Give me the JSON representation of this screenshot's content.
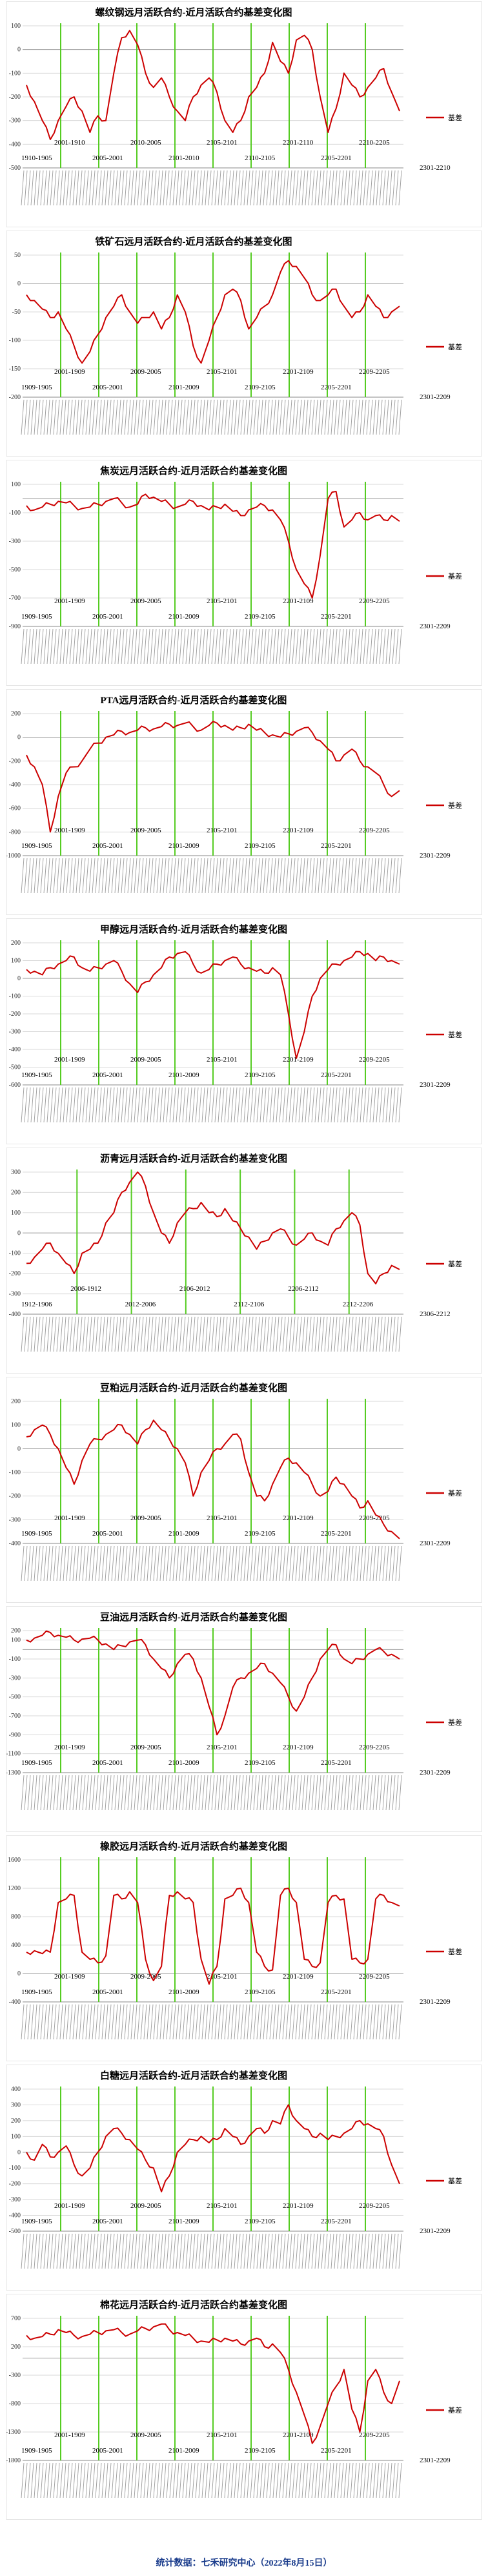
{
  "footer": "统计数据：七禾研究中心（2022年8月15日）",
  "colors": {
    "line": "#cc0000",
    "rollover": "#55cc22",
    "grid": "#d8d8d8"
  },
  "chart_data": [
    {
      "type": "line",
      "title": "螺纹钢远月活跃合约-近月活跃合约基差变化图",
      "ylim": [
        -500,
        100
      ],
      "yticks": [
        100,
        0,
        -100,
        -200,
        -300,
        -400,
        -500
      ],
      "legend": {
        "label": "基差",
        "placement": "right"
      },
      "right_label": "2301-2210",
      "rollover_labels": [
        "1910-1905",
        "2001-1910",
        "2005-2001",
        "2010-2005",
        "2101-2010",
        "2105-2101",
        "2110-2105",
        "2201-2110",
        "2205-2201",
        "2210-2205"
      ],
      "series": [
        {
          "name": "基差",
          "values": [
            -150,
            -220,
            -300,
            -380,
            -300,
            -240,
            -200,
            -260,
            -350,
            -280,
            -300,
            -100,
            50,
            80,
            20,
            -100,
            -160,
            -120,
            -200,
            -260,
            -300,
            -200,
            -150,
            -120,
            -180,
            -300,
            -350,
            -300,
            -200,
            -160,
            -100,
            30,
            -50,
            -100,
            40,
            60,
            0,
            -200,
            -350,
            -250,
            -100,
            -150,
            -200,
            -160,
            -120,
            -80,
            -180,
            -260
          ]
        }
      ]
    },
    {
      "type": "line",
      "title": "铁矿石远月活跃合约-近月活跃合约基差变化图",
      "ylim": [
        -200,
        50
      ],
      "yticks": [
        50,
        0,
        -50,
        -100,
        -150,
        -200
      ],
      "legend": {
        "label": "基差",
        "placement": "right"
      },
      "right_label": "2301-2209",
      "rollover_labels": [
        "1909-1905",
        "2001-1909",
        "2005-2001",
        "2009-2005",
        "2101-2009",
        "2105-2101",
        "2109-2105",
        "2201-2109",
        "2205-2201",
        "2209-2205"
      ],
      "series": [
        {
          "name": "基差",
          "values": [
            -20,
            -30,
            -45,
            -60,
            -50,
            -80,
            -110,
            -140,
            -120,
            -90,
            -60,
            -40,
            -20,
            -50,
            -70,
            -60,
            -50,
            -80,
            -60,
            -20,
            -50,
            -110,
            -140,
            -100,
            -60,
            -20,
            -10,
            -30,
            -80,
            -60,
            -40,
            -20,
            20,
            40,
            30,
            10,
            -20,
            -30,
            -20,
            -10,
            -40,
            -60,
            -50,
            -20,
            -40,
            -60,
            -50,
            -40
          ]
        }
      ]
    },
    {
      "type": "line",
      "title": "焦炭远月活跃合约-近月活跃合约基差变化图",
      "ylim": [
        -900,
        100
      ],
      "yticks": [
        100,
        -100,
        -300,
        -500,
        -700,
        -900
      ],
      "legend": {
        "label": "基差",
        "placement": "right"
      },
      "right_label": "2301-2209",
      "rollover_labels": [
        "1909-1905",
        "2001-1909",
        "2005-2001",
        "2009-2005",
        "2101-2009",
        "2105-2101",
        "2109-2105",
        "2201-2109",
        "2205-2201",
        "2209-2205"
      ],
      "series": [
        {
          "name": "基差",
          "values": [
            -50,
            -80,
            -60,
            -40,
            -20,
            -30,
            -50,
            -70,
            -60,
            -40,
            -20,
            0,
            -30,
            -60,
            -40,
            30,
            10,
            -20,
            -40,
            -60,
            -40,
            -20,
            -50,
            -80,
            -60,
            -40,
            -90,
            -120,
            -80,
            -60,
            -50,
            -80,
            -150,
            -300,
            -500,
            -600,
            -700,
            -400,
            0,
            50,
            -200,
            -150,
            -100,
            -150,
            -120,
            -150,
            -120,
            -160
          ]
        }
      ]
    },
    {
      "type": "line",
      "title": "PTA远月活跃合约-近月活跃合约基差变化图",
      "ylim": [
        -1000,
        200
      ],
      "yticks": [
        200,
        0,
        -200,
        -400,
        -600,
        -800,
        -1000
      ],
      "legend": {
        "label": "基差",
        "placement": "right"
      },
      "right_label": "2301-2209",
      "rollover_labels": [
        "1909-1905",
        "2001-1909",
        "2005-2001",
        "2009-2005",
        "2101-2009",
        "2105-2101",
        "2109-2105",
        "2201-2109",
        "2205-2201",
        "2209-2205"
      ],
      "series": [
        {
          "name": "基差",
          "values": [
            -150,
            -250,
            -400,
            -800,
            -500,
            -300,
            -250,
            -200,
            -100,
            -50,
            0,
            20,
            50,
            40,
            60,
            80,
            70,
            90,
            110,
            100,
            120,
            90,
            60,
            100,
            120,
            100,
            60,
            80,
            110,
            60,
            40,
            20,
            0,
            30,
            50,
            80,
            40,
            -30,
            -100,
            -200,
            -150,
            -100,
            -200,
            -250,
            -300,
            -400,
            -500,
            -450
          ]
        }
      ]
    },
    {
      "type": "line",
      "title": "甲醇远月活跃合约-近月活跃合约基差变化图",
      "ylim": [
        -600,
        200
      ],
      "yticks": [
        200,
        100,
        0,
        -100,
        -200,
        -300,
        -400,
        -500,
        -600
      ],
      "legend": {
        "label": "基差",
        "placement": "right"
      },
      "right_label": "2301-2209",
      "rollover_labels": [
        "1909-1905",
        "2001-1909",
        "2005-2001",
        "2009-2005",
        "2101-2009",
        "2105-2101",
        "2109-2105",
        "2201-2109",
        "2205-2201",
        "2209-2205"
      ],
      "series": [
        {
          "name": "基差",
          "values": [
            50,
            40,
            20,
            60,
            80,
            100,
            120,
            60,
            40,
            60,
            80,
            100,
            40,
            -30,
            -80,
            -20,
            20,
            60,
            120,
            140,
            150,
            80,
            30,
            50,
            80,
            100,
            120,
            80,
            60,
            40,
            30,
            60,
            20,
            -200,
            -450,
            -300,
            -100,
            0,
            50,
            80,
            100,
            120,
            150,
            140,
            100,
            120,
            100,
            80
          ]
        }
      ]
    },
    {
      "type": "line",
      "title": "沥青远月活跃合约-近月活跃合约基差变化图",
      "ylim": [
        -400,
        300
      ],
      "yticks": [
        300,
        200,
        100,
        0,
        -100,
        -200,
        -300,
        -400
      ],
      "legend": {
        "label": "基差",
        "placement": "right"
      },
      "right_label": "2306-2212",
      "rollover_labels": [
        "1912-1906",
        "2006-1912",
        "2012-2006",
        "2106-2012",
        "2112-2106",
        "2206-2112",
        "2212-2206"
      ],
      "series": [
        {
          "name": "基差",
          "values": [
            -150,
            -120,
            -80,
            -50,
            -100,
            -150,
            -200,
            -100,
            -80,
            -50,
            50,
            100,
            200,
            250,
            300,
            230,
            100,
            0,
            -50,
            50,
            100,
            120,
            150,
            100,
            80,
            120,
            60,
            20,
            -20,
            -80,
            -40,
            0,
            20,
            -20,
            -60,
            -30,
            0,
            -40,
            -60,
            20,
            60,
            100,
            40,
            -200,
            -250,
            -200,
            -160,
            -180
          ]
        }
      ]
    },
    {
      "type": "line",
      "title": "豆粕远月活跃合约-近月活跃合约基差变化图",
      "ylim": [
        -400,
        200
      ],
      "yticks": [
        200,
        100,
        0,
        -100,
        -200,
        -300,
        -400
      ],
      "legend": {
        "label": "基差",
        "placement": "right"
      },
      "right_label": "2301-2209",
      "rollover_labels": [
        "1909-1905",
        "2001-1909",
        "2005-2001",
        "2009-2005",
        "2101-2009",
        "2105-2101",
        "2109-2105",
        "2201-2109",
        "2205-2201",
        "2209-2205"
      ],
      "series": [
        {
          "name": "基差",
          "values": [
            50,
            80,
            100,
            60,
            0,
            -80,
            -150,
            -50,
            20,
            40,
            60,
            80,
            100,
            60,
            20,
            80,
            120,
            80,
            40,
            0,
            -60,
            -200,
            -100,
            -50,
            0,
            20,
            60,
            40,
            -100,
            -200,
            -220,
            -150,
            -80,
            -40,
            -60,
            -100,
            -150,
            -200,
            -180,
            -120,
            -150,
            -200,
            -250,
            -220,
            -280,
            -320,
            -350,
            -380
          ]
        }
      ]
    },
    {
      "type": "line",
      "title": "豆油远月活跃合约-近月活跃合约基差变化图",
      "ylim": [
        -1300,
        200
      ],
      "yticks": [
        200,
        100,
        -100,
        -300,
        -500,
        -700,
        -900,
        -1100,
        -1300
      ],
      "legend": {
        "label": "基差",
        "placement": "right"
      },
      "right_label": "2301-2209",
      "rollover_labels": [
        "1909-1905",
        "2001-1909",
        "2005-2001",
        "2009-2005",
        "2101-2009",
        "2105-2101",
        "2109-2105",
        "2201-2109",
        "2205-2201",
        "2209-2205"
      ],
      "series": [
        {
          "name": "基差",
          "values": [
            100,
            120,
            150,
            180,
            150,
            130,
            100,
            110,
            120,
            100,
            60,
            0,
            40,
            80,
            100,
            50,
            -100,
            -200,
            -300,
            -150,
            -50,
            -100,
            -300,
            -600,
            -900,
            -700,
            -400,
            -300,
            -250,
            -200,
            -150,
            -250,
            -350,
            -500,
            -650,
            -500,
            -300,
            -100,
            0,
            50,
            -100,
            -150,
            -100,
            -50,
            0,
            -20,
            -50,
            -100
          ]
        }
      ]
    },
    {
      "type": "line",
      "title": "橡胶远月活跃合约-近月活跃合约基差变化图",
      "ylim": [
        -400,
        1600
      ],
      "yticks": [
        1600,
        1200,
        800,
        400,
        0,
        -400
      ],
      "legend": {
        "label": "基差",
        "placement": "right"
      },
      "right_label": "2301-2209",
      "rollover_labels": [
        "1909-1905",
        "2001-1909",
        "2005-2001",
        "2009-2005",
        "2101-2009",
        "2105-2101",
        "2109-2105",
        "2201-2109",
        "2205-2201",
        "2209-2205"
      ],
      "series": [
        {
          "name": "基差",
          "values": [
            300,
            320,
            280,
            300,
            1000,
            1050,
            1100,
            300,
            200,
            150,
            250,
            1100,
            1050,
            1150,
            1000,
            200,
            -100,
            100,
            1100,
            1150,
            1050,
            1000,
            200,
            -150,
            100,
            1050,
            1100,
            1200,
            1000,
            300,
            100,
            50,
            1100,
            1200,
            1000,
            200,
            100,
            150,
            1000,
            1100,
            1050,
            200,
            150,
            200,
            1050,
            1100,
            1000,
            950
          ]
        }
      ]
    },
    {
      "type": "line",
      "title": "白糖远月活跃合约-近月活跃合约基差变化图",
      "ylim": [
        -500,
        400
      ],
      "yticks": [
        400,
        300,
        200,
        100,
        0,
        -100,
        -200,
        -300,
        -400,
        -500
      ],
      "legend": {
        "label": "基差",
        "placement": "right"
      },
      "right_label": "2301-2209",
      "rollover_labels": [
        "1909-1905",
        "2001-1909",
        "2005-2001",
        "2009-2005",
        "2101-2009",
        "2105-2101",
        "2109-2105",
        "2201-2109",
        "2205-2201",
        "2209-2205"
      ],
      "series": [
        {
          "name": "基差",
          "values": [
            0,
            -50,
            50,
            -30,
            0,
            40,
            -80,
            -150,
            -100,
            0,
            100,
            150,
            120,
            80,
            20,
            -50,
            -100,
            -250,
            -150,
            0,
            50,
            80,
            100,
            60,
            80,
            150,
            100,
            50,
            100,
            150,
            120,
            200,
            180,
            300,
            200,
            150,
            100,
            120,
            80,
            100,
            120,
            150,
            200,
            180,
            150,
            100,
            -80,
            -200
          ]
        }
      ]
    },
    {
      "type": "line",
      "title": "棉花远月活跃合约-近月活跃合约基差变化图",
      "ylim": [
        -1800,
        700
      ],
      "yticks": [
        700,
        200,
        -300,
        -800,
        -1300,
        -1800
      ],
      "legend": {
        "label": "基差",
        "placement": "right"
      },
      "right_label": "2301-2209",
      "rollover_labels": [
        "1909-1905",
        "2001-1909",
        "2005-2001",
        "2009-2005",
        "2101-2009",
        "2105-2101",
        "2109-2105",
        "2201-2109",
        "2205-2201",
        "2209-2205"
      ],
      "series": [
        {
          "name": "基差",
          "values": [
            400,
            350,
            380,
            420,
            500,
            450,
            400,
            380,
            420,
            450,
            480,
            500,
            450,
            420,
            480,
            520,
            550,
            600,
            500,
            450,
            400,
            350,
            300,
            280,
            320,
            350,
            300,
            250,
            300,
            350,
            200,
            250,
            100,
            -200,
            -600,
            -1000,
            -1500,
            -1200,
            -800,
            -500,
            -200,
            -900,
            -1300,
            -400,
            -200,
            -600,
            -800,
            -400
          ]
        }
      ]
    }
  ]
}
